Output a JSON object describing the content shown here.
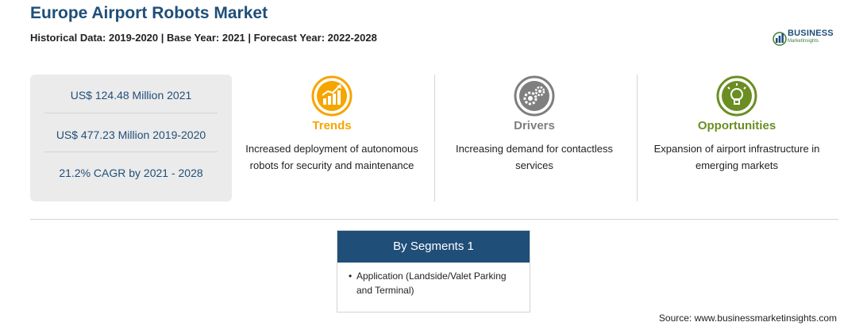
{
  "header": {
    "title": "Europe Airport Robots Market",
    "subtitle": "Historical Data: 2019-2020 | Base Year: 2021 | Forecast Year: 2022-2028"
  },
  "logo": {
    "name": "BUSINESS",
    "tagline": "MarketInsights",
    "icon": "bar-chart-globe-icon",
    "colors": {
      "primary": "#1f4e79",
      "secondary": "#3c7d3c"
    }
  },
  "stats": [
    {
      "text": "US$ 124.48 Million 2021"
    },
    {
      "text": "US$ 477.23 Million 2019-2020"
    },
    {
      "text": "21.2% CAGR by 2021 - 2028"
    }
  ],
  "columns": [
    {
      "heading": "Trends",
      "icon": "rising-chart-icon",
      "color": "#f5a500",
      "text": "Increased deployment of autonomous robots for security and maintenance"
    },
    {
      "heading": "Drivers",
      "icon": "gears-icon",
      "color": "#7f7f7f",
      "text": "Increasing demand for contactless services"
    },
    {
      "heading": "Opportunities",
      "icon": "lightbulb-icon",
      "color": "#6b8e23",
      "text": "Expansion of airport infrastructure in emerging markets"
    }
  ],
  "segments": {
    "title": "By Segments 1",
    "items": [
      "Application (Landside/Valet Parking and Terminal)"
    ]
  },
  "source": "Source: www.businessmarketinsights.com"
}
